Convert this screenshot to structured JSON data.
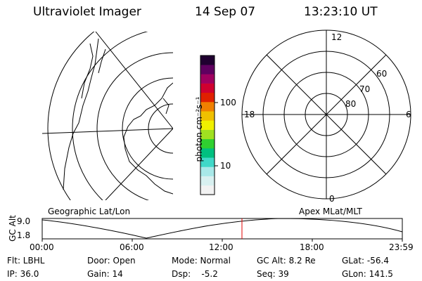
{
  "header": {
    "title": "Ultraviolet Imager",
    "date": "14 Sep 07",
    "time": "13:23:10 UT"
  },
  "colorbar": {
    "unit_label": "photon cm⁻²s⁻¹",
    "ticks": [
      "100",
      "10"
    ],
    "colors": [
      "#f2f2f2",
      "#d8f0f0",
      "#a8e8e8",
      "#40d8c8",
      "#00c080",
      "#30d030",
      "#a0e020",
      "#f0f000",
      "#f0c000",
      "#f08000",
      "#e02000",
      "#d00030",
      "#a00060",
      "#600060",
      "#200030"
    ]
  },
  "left_panel": {
    "label": "Geographic Lat/Lon"
  },
  "right_panel": {
    "label": "Apex MLat/MLT",
    "mlt_labels": {
      "top": "12",
      "left": "18",
      "right": "6",
      "bottom": "0"
    },
    "lat_labels": [
      "60",
      "70",
      "80"
    ]
  },
  "timeline": {
    "axis_label": "GC Alt",
    "y_ticks": [
      "9.0",
      "1.8"
    ],
    "x_ticks": [
      "00:00",
      "06:00",
      "12:00",
      "18:00",
      "23:59"
    ],
    "current_marker_color": "#e00000"
  },
  "info": {
    "filter": "Flt: LBHL",
    "ip": "IP: 36.0",
    "door": "Door: Open",
    "gain": "Gain: 14",
    "mode": "Mode: Normal",
    "dsp": "Dsp:    -5.2",
    "gc_alt": "GC Alt: 8.2 Re",
    "seq": "Seq: 39",
    "glat": "GLat: -56.4",
    "glon": "GLon: 141.5"
  }
}
